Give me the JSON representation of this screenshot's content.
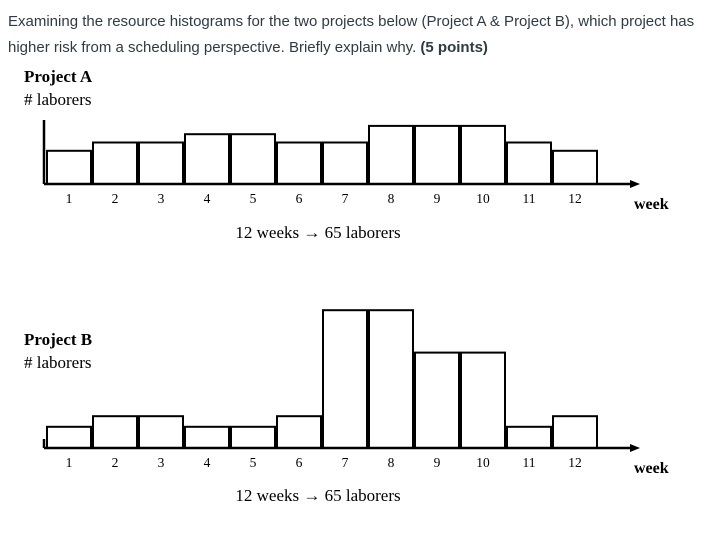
{
  "question": {
    "text": "Examining the resource histograms for the two projects below (Project A & Project B), which project has higher risk from a scheduling perspective. Briefly explain why.",
    "points": "(5 points)"
  },
  "chart_data": [
    {
      "type": "bar",
      "title": "Project A",
      "ylabel": "# laborers",
      "xlabel": "week",
      "categories": [
        "1",
        "2",
        "3",
        "4",
        "5",
        "6",
        "7",
        "8",
        "9",
        "10",
        "11",
        "12"
      ],
      "values": [
        4,
        5,
        5,
        6,
        6,
        5,
        5,
        7,
        7,
        7,
        5,
        4
      ],
      "caption": "12 weeks → 65 laborers"
    },
    {
      "type": "bar",
      "title": "Project B",
      "ylabel": "# laborers",
      "xlabel": "week",
      "categories": [
        "1",
        "2",
        "3",
        "4",
        "5",
        "6",
        "7",
        "8",
        "9",
        "10",
        "11",
        "12"
      ],
      "values": [
        2,
        3,
        3,
        2,
        2,
        3,
        13,
        13,
        9,
        9,
        2,
        3
      ],
      "caption": "12 weeks → 65 laborers"
    }
  ]
}
